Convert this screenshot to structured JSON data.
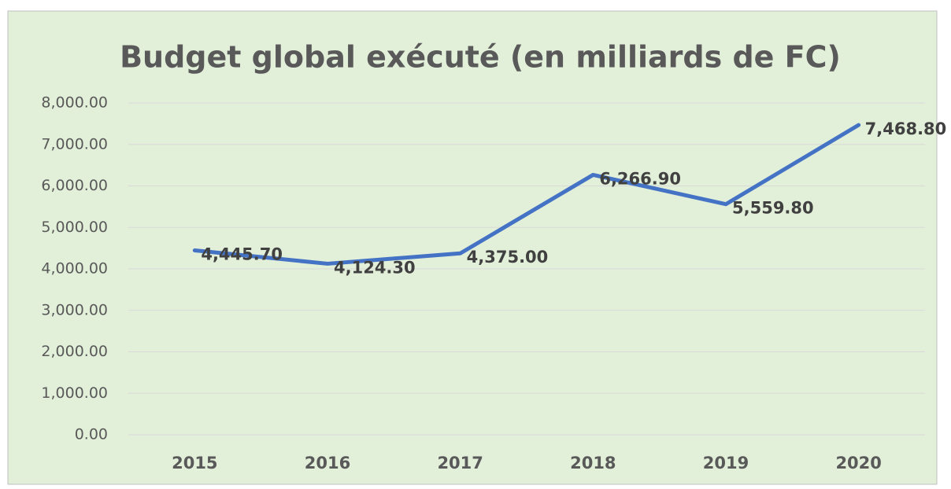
{
  "chart_data": {
    "type": "line",
    "title": "Budget global exécuté (en milliards de FC)",
    "categories": [
      "2015",
      "2016",
      "2017",
      "2018",
      "2019",
      "2020"
    ],
    "series": [
      {
        "name": "Budget global exécuté",
        "color": "#4472c4",
        "values": [
          4445.7,
          4124.3,
          4375.0,
          6266.9,
          5559.8,
          7468.8
        ],
        "value_labels": [
          "4,445.70",
          "4,124.30",
          "4,375.00",
          "6,266.90",
          "5,559.80",
          "7,468.80"
        ]
      }
    ],
    "ylim": [
      0,
      8000
    ],
    "yticks": [
      {
        "value": 0,
        "label": "0.00"
      },
      {
        "value": 1000,
        "label": "1,000.00"
      },
      {
        "value": 2000,
        "label": "2,000.00"
      },
      {
        "value": 3000,
        "label": "3,000.00"
      },
      {
        "value": 4000,
        "label": "4,000.00"
      },
      {
        "value": 5000,
        "label": "5,000.00"
      },
      {
        "value": 6000,
        "label": "6,000.00"
      },
      {
        "value": 7000,
        "label": "7,000.00"
      },
      {
        "value": 8000,
        "label": "8,000.00"
      }
    ],
    "grid": true
  }
}
